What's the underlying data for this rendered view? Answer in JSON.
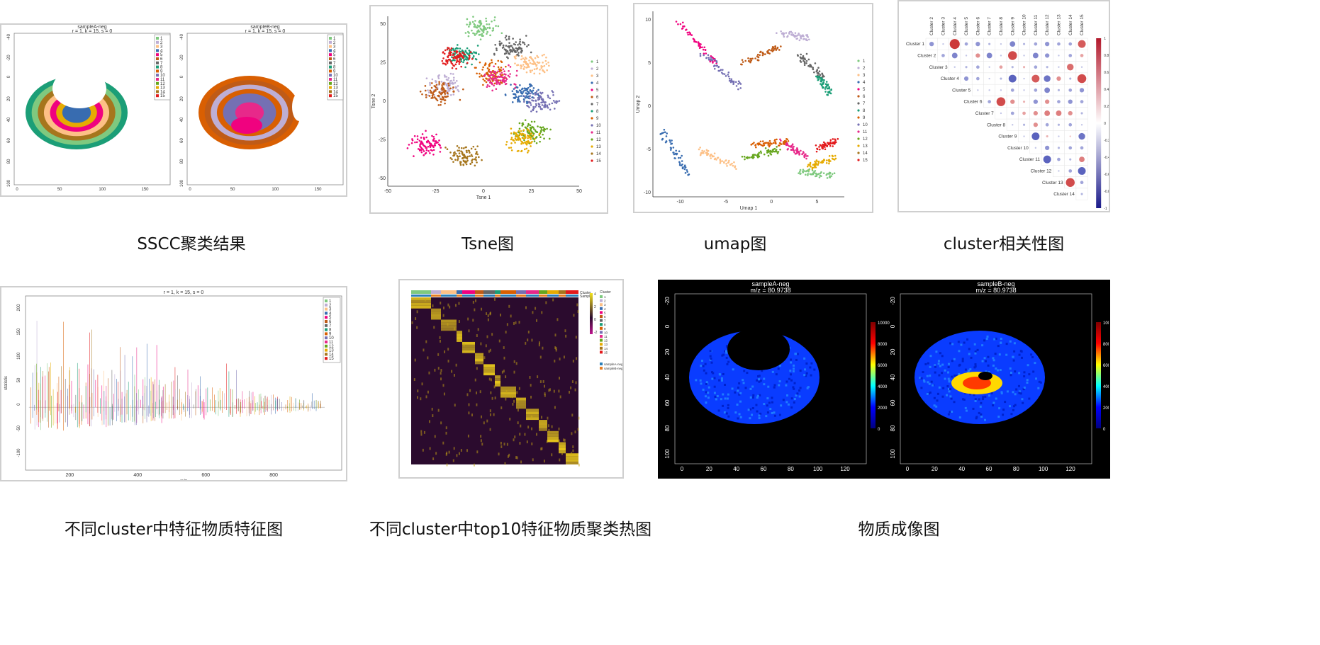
{
  "captions": {
    "sscc": "SSCC聚类结果",
    "tsne": "Tsne图",
    "umap": "umap图",
    "corr": "cluster相关性图",
    "spectra": "不同cluster中特征物质特征图",
    "heatmap": "不同cluster中top10特征物质聚类热图",
    "imaging": "物质成像图"
  },
  "cluster_colors": [
    "#7fc97f",
    "#beaed4",
    "#fdc086",
    "#386cb0",
    "#f0027f",
    "#bf5b17",
    "#666666",
    "#1b9e77",
    "#d95f02",
    "#7570b3",
    "#e7298a",
    "#66a61e",
    "#e6ab02",
    "#a6761d",
    "#e31a1c"
  ],
  "cluster_labels": [
    "1",
    "2",
    "3",
    "4",
    "5",
    "6",
    "7",
    "8",
    "9",
    "10",
    "11",
    "12",
    "13",
    "14",
    "15"
  ],
  "chart_data": [
    {
      "type": "heatmap",
      "name": "sscc",
      "panels": [
        {
          "title": "sampleA-neg",
          "subtitle": "r = 1, k = 15, s = 0"
        },
        {
          "title": "sampleB-neg",
          "subtitle": "r = 1, k = 15, s = 0"
        }
      ],
      "xticks": [
        "0",
        "50",
        "100",
        "150"
      ],
      "yticks": [
        "-40",
        "-20",
        "0",
        "20",
        "40",
        "60",
        "80",
        "100"
      ],
      "legend": [
        "1",
        "2",
        "3",
        "4",
        "5",
        "6",
        "7",
        "8",
        "9",
        "10",
        "11",
        "12",
        "13",
        "14",
        "15"
      ],
      "legend_placement": "top-right"
    },
    {
      "type": "scatter",
      "name": "tsne",
      "xlabel": "Tsne 1",
      "ylabel": "Tsne 2",
      "xticks": [
        "-50",
        "-25",
        "0",
        "25",
        "50"
      ],
      "yticks": [
        "-50",
        "-25",
        "0",
        "25",
        "50"
      ],
      "xlim": [
        -50,
        50
      ],
      "ylim": [
        -55,
        55
      ],
      "legend": [
        "1",
        "2",
        "3",
        "4",
        "5",
        "6",
        "7",
        "8",
        "9",
        "10",
        "11",
        "12",
        "13",
        "14",
        "15"
      ],
      "legend_placement": "right",
      "clusters": [
        {
          "label": "1",
          "cx": 0,
          "cy": 48
        },
        {
          "label": "2",
          "cx": -20,
          "cy": 10
        },
        {
          "label": "3",
          "cx": 25,
          "cy": 25
        },
        {
          "label": "4",
          "cx": 22,
          "cy": 5
        },
        {
          "label": "5",
          "cx": -30,
          "cy": -28
        },
        {
          "label": "6",
          "cx": -22,
          "cy": 5
        },
        {
          "label": "7",
          "cx": 15,
          "cy": 35
        },
        {
          "label": "8",
          "cx": -10,
          "cy": 30
        },
        {
          "label": "9",
          "cx": 5,
          "cy": 18
        },
        {
          "label": "10",
          "cx": 30,
          "cy": 0
        },
        {
          "label": "11",
          "cx": 8,
          "cy": 15
        },
        {
          "label": "12",
          "cx": 25,
          "cy": -20
        },
        {
          "label": "13",
          "cx": 20,
          "cy": -25
        },
        {
          "label": "14",
          "cx": -10,
          "cy": -35
        },
        {
          "label": "15",
          "cx": -15,
          "cy": 28
        }
      ]
    },
    {
      "type": "scatter",
      "name": "umap",
      "xlabel": "Umap 1",
      "ylabel": "Umap 2",
      "xticks": [
        "-10",
        "-5",
        "0",
        "5"
      ],
      "yticks": [
        "-10",
        "-5",
        "0",
        "5",
        "10"
      ],
      "xlim": [
        -13,
        8
      ],
      "ylim": [
        -10.5,
        11
      ],
      "legend": [
        "1",
        "2",
        "3",
        "4",
        "5",
        "6",
        "7",
        "8",
        "9",
        "10",
        "11",
        "12",
        "13",
        "14",
        "15"
      ],
      "legend_placement": "right"
    },
    {
      "type": "heatmap",
      "name": "corr",
      "col_labels": [
        "Cluster 2",
        "Cluster 3",
        "Cluster 4",
        "Cluster 5",
        "Cluster 6",
        "Cluster 7",
        "Cluster 8",
        "Cluster 9",
        "Cluster 10",
        "Cluster 11",
        "Cluster 12",
        "Cluster 13",
        "Cluster 14",
        "Cluster 15"
      ],
      "row_labels": [
        "Cluster 1",
        "Cluster 2",
        "Cluster 3",
        "Cluster 4",
        "Cluster 5",
        "Cluster 6",
        "Cluster 7",
        "Cluster 8",
        "Cluster 9",
        "Cluster 10",
        "Cluster 11",
        "Cluster 12",
        "Cluster 13",
        "Cluster 14"
      ],
      "scale_ticks": [
        "1",
        "0.8",
        "0.6",
        "0.4",
        "0.2",
        "0",
        "-0.2",
        "-0.4",
        "-0.6",
        "-0.8",
        "-1"
      ],
      "values": [
        [
          -0.4,
          -0.1,
          0.9,
          -0.3,
          -0.4,
          -0.2,
          -0.1,
          -0.5,
          -0.2,
          -0.3,
          -0.4,
          -0.3,
          -0.3,
          0.7
        ],
        [
          null,
          -0.3,
          -0.5,
          -0.1,
          0.4,
          -0.5,
          -0.1,
          0.8,
          -0.1,
          -0.5,
          -0.4,
          -0.1,
          -0.3,
          0.3
        ],
        [
          null,
          null,
          -0.1,
          -0.2,
          -0.3,
          -0.1,
          0.3,
          -0.2,
          0.2,
          -0.3,
          -0.2,
          -0.1,
          0.6,
          -0.1
        ],
        [
          null,
          null,
          null,
          -0.4,
          -0.3,
          -0.1,
          -0.2,
          -0.7,
          -0.1,
          0.7,
          -0.6,
          0.4,
          -0.2,
          0.8
        ],
        [
          null,
          null,
          null,
          null,
          -0.1,
          -0.1,
          -0.1,
          -0.3,
          -0.1,
          -0.3,
          -0.5,
          -0.2,
          -0.3,
          -0.4
        ],
        [
          null,
          null,
          null,
          null,
          null,
          -0.3,
          0.8,
          0.4,
          0.2,
          -0.4,
          0.4,
          -0.3,
          -0.4,
          -0.3
        ],
        [
          null,
          null,
          null,
          null,
          null,
          null,
          -0.1,
          -0.3,
          0.3,
          0.4,
          0.5,
          0.5,
          0.4,
          -0.2
        ],
        [
          null,
          null,
          null,
          null,
          null,
          null,
          null,
          -0.1,
          -0.2,
          0.4,
          -0.3,
          -0.2,
          -0.3,
          -0.1
        ],
        [
          null,
          null,
          null,
          null,
          null,
          null,
          null,
          null,
          -0.1,
          -0.7,
          0.2,
          -0.1,
          0.1,
          -0.6
        ],
        [
          null,
          null,
          null,
          null,
          null,
          null,
          null,
          null,
          null,
          -0.1,
          -0.4,
          -0.2,
          -0.3,
          -0.3
        ],
        [
          null,
          null,
          null,
          null,
          null,
          null,
          null,
          null,
          null,
          null,
          -0.7,
          -0.3,
          -0.2,
          0.5
        ],
        [
          null,
          null,
          null,
          null,
          null,
          null,
          null,
          null,
          null,
          null,
          null,
          -0.1,
          -0.3,
          -0.7
        ],
        [
          null,
          null,
          null,
          null,
          null,
          null,
          null,
          null,
          null,
          null,
          null,
          null,
          0.8,
          -0.3
        ],
        [
          null,
          null,
          null,
          null,
          null,
          null,
          null,
          null,
          null,
          null,
          null,
          null,
          null,
          -0.2
        ]
      ]
    },
    {
      "type": "line",
      "name": "spectra",
      "title": "r = 1, k = 15, s = 0",
      "xlabel": "m/z",
      "ylabel": "statistic",
      "xticks": [
        "200",
        "400",
        "600",
        "800"
      ],
      "yticks": [
        "200",
        "150",
        "100",
        "50",
        "0",
        "-50",
        "-100"
      ],
      "xlim": [
        70,
        1000
      ],
      "ylim": [
        -130,
        230
      ],
      "legend": [
        "1",
        "2",
        "3",
        "4",
        "5",
        "6",
        "7",
        "8",
        "9",
        "10",
        "11",
        "12",
        "13",
        "14",
        "15"
      ],
      "legend_placement": "top-right"
    },
    {
      "type": "heatmap",
      "name": "heatmap",
      "annotation_labels": [
        "Cluster",
        "Sample"
      ],
      "legend_title": "Cluster",
      "legend": [
        "1",
        "2",
        "3",
        "4",
        "5",
        "6",
        "7",
        "8",
        "9",
        "10",
        "11",
        "12",
        "13",
        "14",
        "15"
      ],
      "sample_legend": [
        "sampleA-neg",
        "sampleB-neg"
      ],
      "scale_ticks": [
        "4",
        "2",
        "0",
        "-2"
      ]
    },
    {
      "type": "heatmap",
      "name": "imaging",
      "panels": [
        {
          "title": "sampleA-neg",
          "subtitle": "m/z = 80.9738"
        },
        {
          "title": "sampleB-neg",
          "subtitle": "m/z = 80.9738"
        }
      ],
      "xticks": [
        "0",
        "20",
        "40",
        "60",
        "80",
        "100",
        "120"
      ],
      "yticks": [
        "-20",
        "0",
        "20",
        "40",
        "60",
        "80",
        "100"
      ],
      "scale_ticks": [
        "10000",
        "8000",
        "6000",
        "4000",
        "2000",
        "0"
      ]
    }
  ]
}
